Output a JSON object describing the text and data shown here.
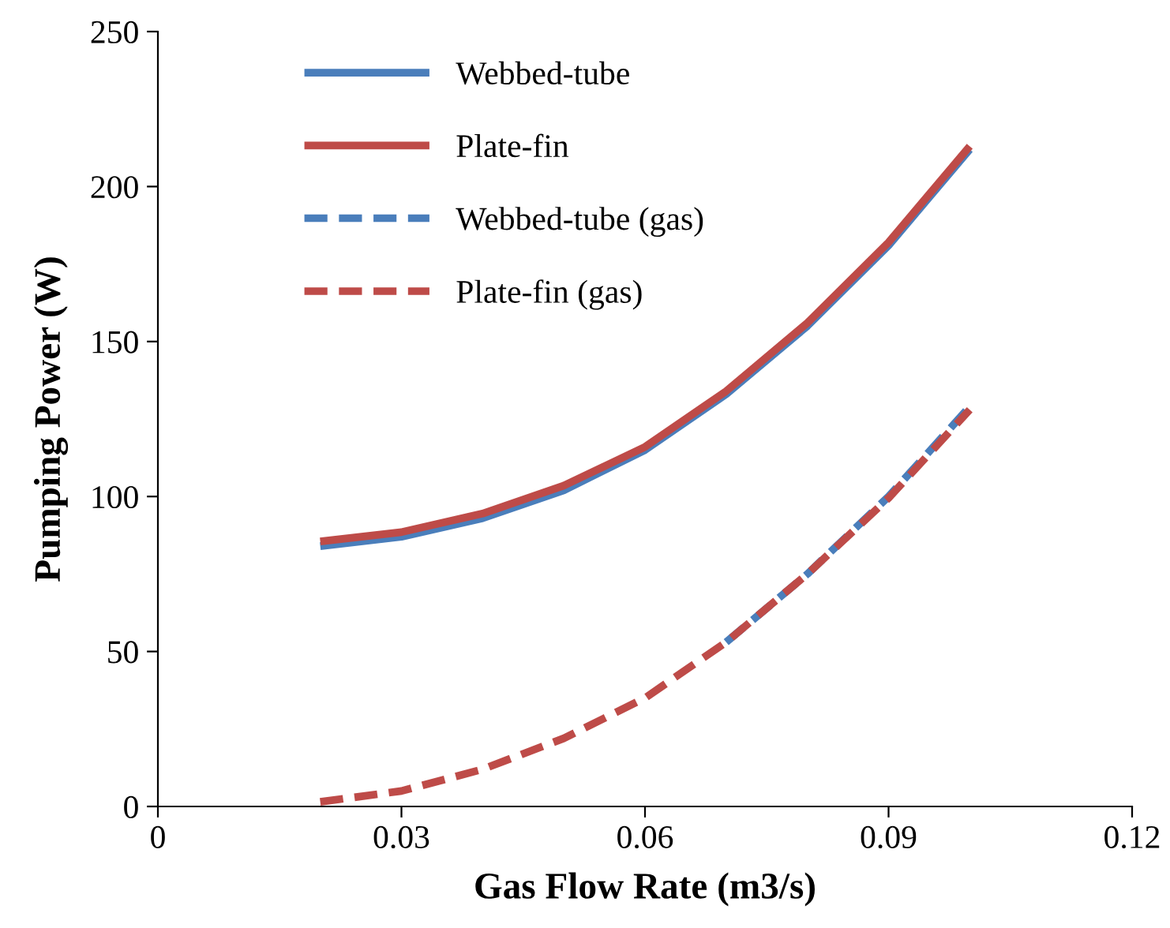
{
  "chart_data": {
    "type": "line",
    "xlabel": "Gas Flow Rate (m3/s)",
    "ylabel": "Pumping Power (W)",
    "x": [
      0.02,
      0.03,
      0.04,
      0.05,
      0.06,
      0.07,
      0.08,
      0.09,
      0.1
    ],
    "series": [
      {
        "name": "Webbed-tube",
        "color": "#4a7ebb",
        "line_style": "solid",
        "values": [
          84,
          87,
          93,
          102,
          115,
          133,
          155,
          181,
          212
        ]
      },
      {
        "name": "Plate-fin",
        "color": "#be4b48",
        "line_style": "solid",
        "values": [
          85.5,
          88.5,
          94.5,
          103.5,
          116,
          134,
          156,
          182,
          213
        ]
      },
      {
        "name": "Webbed-tube (gas)",
        "color": "#4a7ebb",
        "line_style": "dashed",
        "values": [
          null,
          null,
          null,
          null,
          null,
          53,
          75,
          100,
          129
        ]
      },
      {
        "name": "Plate-fin (gas)",
        "color": "#be4b48",
        "line_style": "dashed",
        "values": [
          1.5,
          5,
          12,
          22,
          35,
          53,
          75,
          99.5,
          128
        ]
      }
    ],
    "xlim": [
      0,
      0.12
    ],
    "xticks": [
      0,
      0.03,
      0.06,
      0.09,
      0.12
    ],
    "ylim": [
      0,
      250
    ],
    "yticks": [
      0,
      50,
      100,
      150,
      200,
      250
    ],
    "grid": false,
    "legend": "top left",
    "marker": "none"
  }
}
